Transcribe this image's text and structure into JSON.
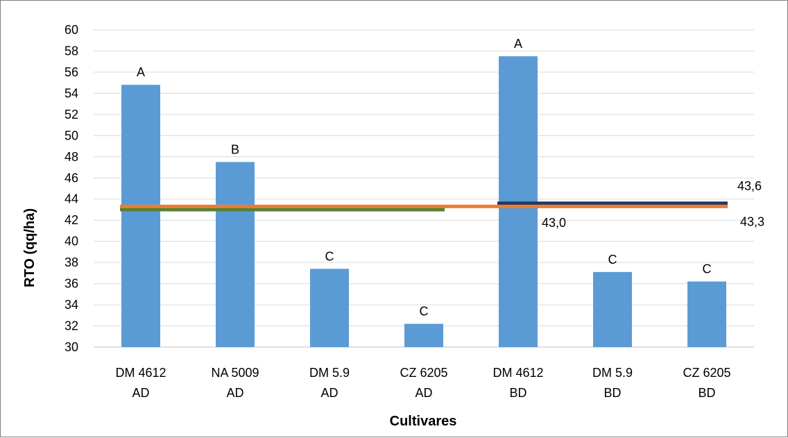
{
  "chart_data": {
    "type": "bar",
    "title": "",
    "xlabel": "Cultivares",
    "ylabel": "RTO (qq/ha)",
    "ylim": [
      30,
      60
    ],
    "yticks": [
      30,
      32,
      34,
      36,
      38,
      40,
      42,
      44,
      46,
      48,
      50,
      52,
      54,
      56,
      58,
      60
    ],
    "grid": true,
    "bar_color": "#5b9bd5",
    "categories": [
      [
        "DM 4612",
        "AD"
      ],
      [
        "NA 5009",
        "AD"
      ],
      [
        "DM 5.9",
        "AD"
      ],
      [
        "CZ 6205",
        "AD"
      ],
      [
        "DM 4612",
        "BD"
      ],
      [
        "DM 5.9",
        "BD"
      ],
      [
        "CZ 6205",
        "BD"
      ]
    ],
    "values": [
      54.8,
      47.5,
      37.4,
      32.2,
      57.5,
      37.1,
      36.2
    ],
    "letters": [
      "A",
      "B",
      "C",
      "C",
      "A",
      "C",
      "C"
    ],
    "reference_lines": [
      {
        "label": "43,0",
        "value": 43.0,
        "from": 0,
        "to": 3,
        "color": "#548235"
      },
      {
        "label": "43,6",
        "value": 43.6,
        "from": 4,
        "to": 6,
        "color": "#203864"
      },
      {
        "label": "43,3",
        "value": 43.3,
        "from": 0,
        "to": 6,
        "color": "#ed7d31"
      }
    ]
  }
}
